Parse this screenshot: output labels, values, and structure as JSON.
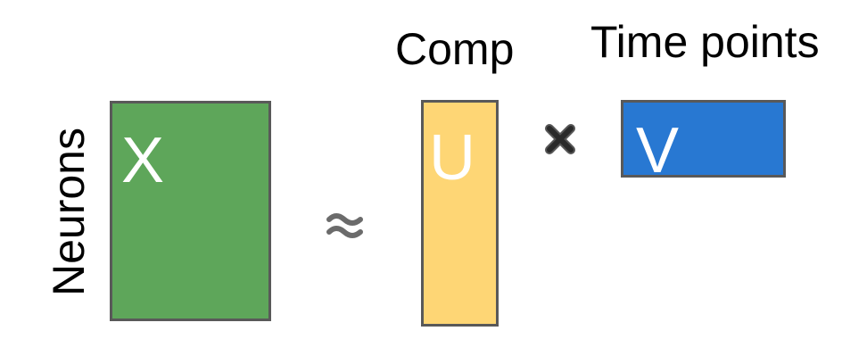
{
  "labels": {
    "comp": "Comp",
    "time_points": "Time points",
    "neurons": "Neurons"
  },
  "matrices": {
    "x": {
      "letter": "X",
      "color": "#5ea65a"
    },
    "u": {
      "letter": "U",
      "color": "#fed675"
    },
    "v": {
      "letter": "V",
      "color": "#2878d2"
    }
  },
  "operators": {
    "approx_icon": "approximately-equal-icon",
    "times_icon": "multiply-icon"
  }
}
